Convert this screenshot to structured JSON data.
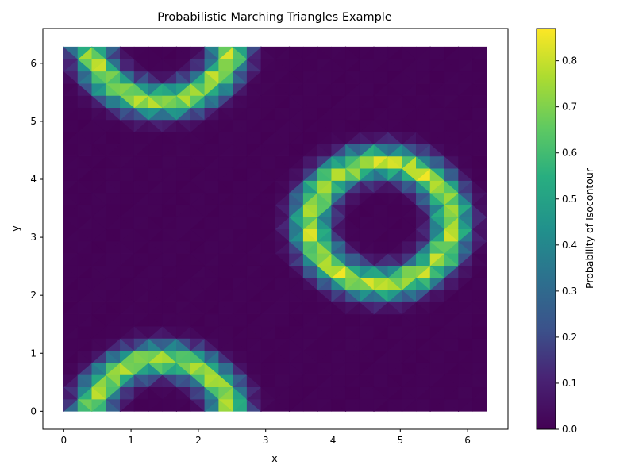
{
  "chart_data": {
    "type": "heatmap",
    "title": "Probabilistic Marching Triangles Example",
    "xlabel": "x",
    "ylabel": "y",
    "xlim": [
      -0.31,
      6.6
    ],
    "ylim": [
      -0.31,
      6.6
    ],
    "x_ticks": [
      "0",
      "1",
      "2",
      "3",
      "4",
      "5",
      "6"
    ],
    "y_ticks": [
      "0",
      "1",
      "2",
      "3",
      "4",
      "5",
      "6"
    ],
    "domain": {
      "x": [
        0,
        6.283
      ],
      "y": [
        0,
        6.283
      ]
    },
    "grid": false,
    "colormap": "viridis",
    "colorbar": {
      "label": "Probability of Isocontour",
      "range": [
        0,
        0.87
      ],
      "ticks": [
        "0.0",
        "0.1",
        "0.2",
        "0.3",
        "0.4",
        "0.5",
        "0.6",
        "0.7",
        "0.8"
      ]
    },
    "features": [
      {
        "shape": "ring",
        "cx": 4.72,
        "cy": 3.25,
        "r": 1.05,
        "peak": 0.87
      },
      {
        "shape": "arc-opening-up",
        "cx": 1.45,
        "cy": 6.4,
        "r": 1.05,
        "peak": 0.85
      },
      {
        "shape": "arc-opening-down",
        "cx": 1.45,
        "cy": -0.15,
        "r": 1.05,
        "peak": 0.85
      }
    ]
  }
}
